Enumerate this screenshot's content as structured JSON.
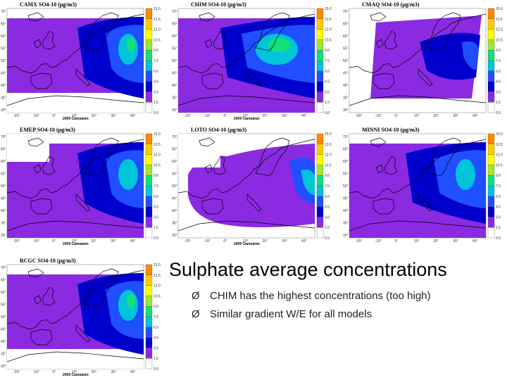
{
  "colors": {
    "purple": "#8a2be2",
    "dark_blue": "#0000cc",
    "blue": "#1f4fff",
    "teal": "#00c4d8",
    "green": "#14e07a",
    "land_bg": "#ffffff",
    "scale": [
      "#ffffff",
      "#8a2be2",
      "#0000cc",
      "#1f4fff",
      "#00c4d8",
      "#14e07a",
      "#a0e632",
      "#ffff00",
      "#ffcc00",
      "#ff8800"
    ]
  },
  "panels": [
    {
      "id": "camx",
      "title": "CAMX      SO4-10 (μg/m3)",
      "campaign": "2009 Campaign"
    },
    {
      "id": "chim",
      "title": "CHIM      SO4-10 (μg/m3)",
      "campaign": "2009 Campaign"
    },
    {
      "id": "cmaq",
      "title": "CMAQ      SO4-10 (μg/m3)",
      "campaign": ""
    },
    {
      "id": "emep",
      "title": "EMEP      SO4-10 (μg/m3)",
      "campaign": "2009 Campaign"
    },
    {
      "id": "loto",
      "title": "LOTO      SO4-10 (μg/m3)",
      "campaign": "2009 Campaign"
    },
    {
      "id": "minni",
      "title": "MINNI      SO4-10 (μg/m3)",
      "campaign": ""
    },
    {
      "id": "rcgc",
      "title": "RCGC      SO4-10 (μg/m3)",
      "campaign": "2009 Campaign"
    }
  ],
  "colorbar_ticks": [
    "0.0",
    "1.5",
    "3.0",
    "4.5",
    "6.0",
    "7.5",
    "9.0",
    "10.5",
    "12.0",
    "13.5",
    "15.0"
  ],
  "lat_ticks": [
    "70°",
    "65°",
    "60°",
    "55°",
    "50°",
    "45°",
    "40°",
    "35°",
    "30°"
  ],
  "lon_ticks": [
    "-20°",
    "-10°",
    "0°",
    "10°",
    "20°",
    "30°",
    "40°"
  ],
  "slide": {
    "title": "Sulphate average concentrations",
    "bullet_marker": "Ø",
    "bullets": [
      "CHIM has the highest concentrations (too high)",
      "Similar gradient W/E for all models"
    ]
  }
}
